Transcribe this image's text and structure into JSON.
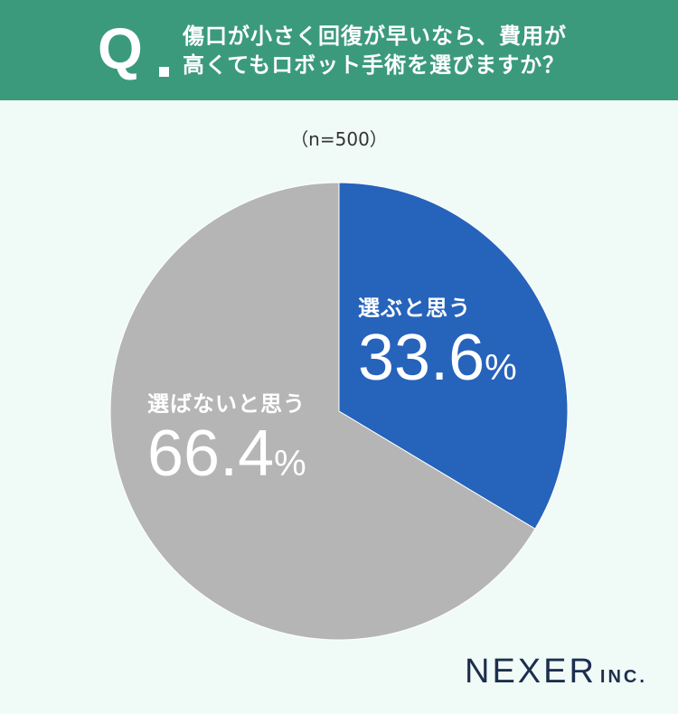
{
  "header": {
    "q_mark": "Q",
    "question_line1": "傷口が小さく回復が早いなら、費用が",
    "question_line2": "高くてもロボット手術を選びますか？"
  },
  "sample_size": "（n=500）",
  "chart_data": {
    "type": "pie",
    "title": "",
    "categories": [
      "選ぶと思う",
      "選ばないと思う"
    ],
    "values": [
      33.6,
      66.4
    ],
    "value_labels": [
      "33.6",
      "66.4"
    ],
    "unit": "%",
    "colors": [
      "#2663bb",
      "#b5b5b5"
    ],
    "start_angle": "12 o'clock",
    "direction": "clockwise",
    "legend": "none"
  },
  "logo": {
    "name": "NEXER",
    "suffix": "INC."
  }
}
